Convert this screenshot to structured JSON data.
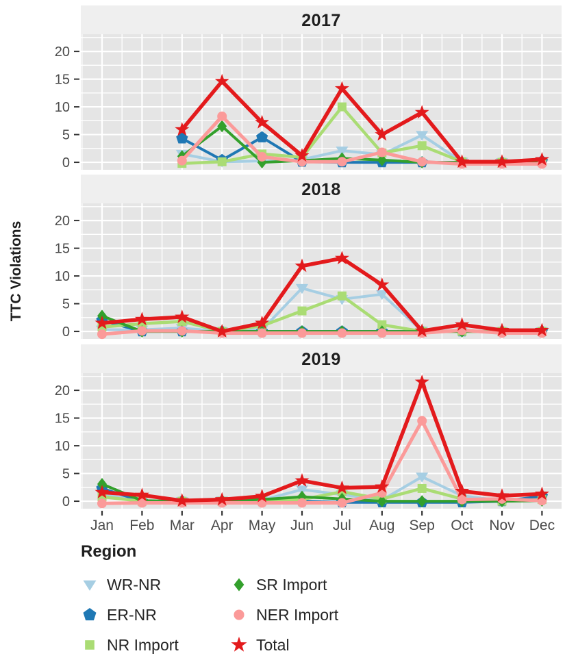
{
  "chart_data": {
    "type": "line",
    "title": "",
    "ylabel": "TTC Violations",
    "xlabel": "",
    "x_categories": [
      "Jan",
      "Feb",
      "Mar",
      "Apr",
      "May",
      "Jun",
      "Jul",
      "Aug",
      "Sep",
      "Oct",
      "Nov",
      "Dec"
    ],
    "y_ticks": [
      0,
      5,
      10,
      15,
      20
    ],
    "y_minor": [
      2.5,
      7.5,
      12.5,
      17.5,
      22.5
    ],
    "ylim": [
      -1.35,
      23.1
    ],
    "grid": true,
    "legend": {
      "title": "Region",
      "position": "bottom",
      "columns": 2
    },
    "colors": {
      "strip": "#efefef",
      "panel": "#e5e5e5",
      "grid": "#ffffff",
      "tick_text": "#4a4a4a",
      "axis_text": "#1f1f1f"
    },
    "series_styles": [
      {
        "name": "WR-NR",
        "color": "#a6cee3",
        "marker": "triangle-down",
        "width": 4
      },
      {
        "name": "ER-NR",
        "color": "#1f78b4",
        "marker": "pentagon",
        "width": 4
      },
      {
        "name": "NR Import",
        "color": "#aadc74",
        "marker": "square",
        "width": 4.5
      },
      {
        "name": "SR Import",
        "color": "#33a02c",
        "marker": "diamond",
        "width": 4
      },
      {
        "name": "NER Import",
        "color": "#fb9a99",
        "marker": "circle",
        "width": 5
      },
      {
        "name": "Total",
        "color": "#e31a1c",
        "marker": "star",
        "width": 5.5
      }
    ],
    "facets": [
      {
        "label": "2017",
        "series": [
          {
            "name": "WR-NR",
            "values": [
              null,
              null,
              1.5,
              0.1,
              0.2,
              0.5,
              2.1,
              1.4,
              4.9,
              0.1,
              0,
              0.2
            ]
          },
          {
            "name": "ER-NR",
            "values": [
              null,
              null,
              4.3,
              0.4,
              4.5,
              0.1,
              0,
              0,
              0,
              0,
              0,
              0.2
            ]
          },
          {
            "name": "NR Import",
            "values": [
              null,
              null,
              -0.2,
              0.1,
              1.5,
              0.9,
              10,
              1.7,
              3,
              0.1,
              0,
              0.1
            ]
          },
          {
            "name": "SR Import",
            "values": [
              null,
              null,
              1.1,
              6.5,
              0,
              0.3,
              0.7,
              0.4,
              0,
              0,
              0,
              0
            ]
          },
          {
            "name": "NER Import",
            "values": [
              null,
              null,
              0.3,
              8.3,
              1,
              0.1,
              0.1,
              1.8,
              0.1,
              -0.3,
              -0.3,
              -0.3
            ]
          },
          {
            "name": "Total",
            "values": [
              null,
              null,
              5.9,
              14.6,
              7.2,
              1.2,
              13.3,
              5,
              9,
              0.1,
              0.1,
              0.5
            ]
          }
        ]
      },
      {
        "label": "2018",
        "series": [
          {
            "name": "WR-NR",
            "values": [
              0.3,
              0.3,
              0.6,
              0,
              0.3,
              7.8,
              5.8,
              6.7,
              0.1,
              0.1,
              0,
              0
            ]
          },
          {
            "name": "ER-NR",
            "values": [
              2.0,
              0,
              0,
              0,
              0,
              0,
              0,
              0,
              0,
              0,
              0,
              0
            ]
          },
          {
            "name": "NR Import",
            "values": [
              0.8,
              1.4,
              1.8,
              0,
              1.0,
              3.7,
              6.4,
              1.2,
              0,
              0,
              0,
              0
            ]
          },
          {
            "name": "SR Import",
            "values": [
              2.8,
              0,
              0,
              0,
              0,
              0,
              0,
              0,
              0,
              0,
              0,
              0
            ]
          },
          {
            "name": "NER Import",
            "values": [
              -0.5,
              0.1,
              0.1,
              -0.3,
              -0.3,
              -0.3,
              -0.3,
              -0.3,
              -0.3,
              0.2,
              -0.3,
              -0.3
            ]
          },
          {
            "name": "Total",
            "values": [
              1.5,
              2.2,
              2.6,
              0,
              1.5,
              11.8,
              13.2,
              8.4,
              0.1,
              1.2,
              0.2,
              0.2
            ]
          }
        ]
      },
      {
        "label": "2019",
        "series": [
          {
            "name": "WR-NR",
            "values": [
              1.2,
              0.1,
              0,
              0.1,
              0.2,
              2.1,
              1.2,
              0.2,
              4.4,
              1.0,
              0.1,
              0.5
            ]
          },
          {
            "name": "ER-NR",
            "values": [
              2.3,
              0,
              0,
              0,
              0,
              0,
              -0.2,
              -0.2,
              -0.2,
              -0.2,
              0,
              0.9
            ]
          },
          {
            "name": "NR Import",
            "values": [
              0.8,
              0,
              0,
              0,
              0.1,
              0.3,
              1.7,
              0.4,
              2.3,
              0.4,
              0,
              0.3
            ]
          },
          {
            "name": "SR Import",
            "values": [
              3.1,
              0.1,
              0,
              0.1,
              0.3,
              0.8,
              0.4,
              0,
              0,
              0,
              0,
              0.1
            ]
          },
          {
            "name": "NER Import",
            "values": [
              -0.4,
              -0.3,
              -0.3,
              -0.3,
              -0.3,
              -0.3,
              -0.3,
              1.5,
              14.5,
              0.3,
              0.4,
              0.1
            ]
          },
          {
            "name": "Total",
            "values": [
              1.6,
              1.1,
              0.1,
              0.3,
              0.9,
              3.7,
              2.4,
              2.6,
              21.5,
              1.8,
              1.0,
              1.3
            ]
          }
        ]
      }
    ]
  }
}
